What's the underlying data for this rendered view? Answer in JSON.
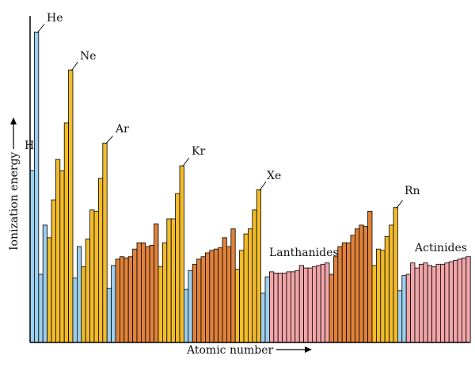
{
  "chart_data": {
    "type": "bar",
    "title": "",
    "xlabel": "Atomic number",
    "ylabel": "Ionization energy",
    "ylim": [
      0,
      25
    ],
    "x": [
      1,
      2,
      3,
      4,
      5,
      6,
      7,
      8,
      9,
      10,
      11,
      12,
      13,
      14,
      15,
      16,
      17,
      18,
      19,
      20,
      21,
      22,
      23,
      24,
      25,
      26,
      27,
      28,
      29,
      30,
      31,
      32,
      33,
      34,
      35,
      36,
      37,
      38,
      39,
      40,
      41,
      42,
      43,
      44,
      45,
      46,
      47,
      48,
      49,
      50,
      51,
      52,
      53,
      54,
      55,
      56,
      57,
      58,
      59,
      60,
      61,
      62,
      63,
      64,
      65,
      66,
      67,
      68,
      69,
      70,
      71,
      72,
      73,
      74,
      75,
      76,
      77,
      78,
      79,
      80,
      81,
      82,
      83,
      84,
      85,
      86,
      87,
      88,
      89,
      90,
      91,
      92,
      93,
      94,
      95,
      96,
      97,
      98,
      99,
      100,
      101,
      102,
      103
    ],
    "values": [
      13.6,
      24.6,
      5.4,
      9.3,
      8.3,
      11.3,
      14.5,
      13.6,
      17.4,
      21.6,
      5.1,
      7.6,
      6.0,
      8.2,
      10.5,
      10.4,
      13.0,
      15.8,
      4.3,
      6.1,
      6.6,
      6.8,
      6.7,
      6.8,
      7.4,
      7.9,
      7.9,
      7.6,
      7.7,
      9.4,
      6.0,
      7.9,
      9.8,
      9.8,
      11.8,
      14.0,
      4.2,
      5.7,
      6.2,
      6.6,
      6.8,
      7.1,
      7.3,
      7.4,
      7.5,
      8.3,
      7.6,
      9.0,
      5.8,
      7.3,
      8.6,
      9.0,
      10.5,
      12.1,
      3.9,
      5.2,
      5.6,
      5.5,
      5.5,
      5.5,
      5.6,
      5.6,
      5.7,
      6.1,
      5.9,
      5.9,
      6.0,
      6.1,
      6.2,
      6.3,
      5.4,
      6.8,
      7.6,
      7.9,
      7.9,
      8.5,
      9.0,
      9.3,
      9.2,
      10.4,
      6.1,
      7.4,
      7.3,
      8.4,
      9.3,
      10.7,
      4.1,
      5.3,
      5.4,
      6.3,
      5.9,
      6.2,
      6.3,
      6.1,
      6.0,
      6.2,
      6.2,
      6.3,
      6.4,
      6.5,
      6.6,
      6.7,
      6.8
    ],
    "groups": {
      "colors": {
        "s-block": "#9dcfee",
        "p-block": "#f2bb2a",
        "d-block": "#e0823a",
        "f-block": "#f2a5a8"
      }
    },
    "annotations": [
      "H",
      "He",
      "Ne",
      "Ar",
      "Kr",
      "Xe",
      "Rn",
      "Lanthanides",
      "Actinides"
    ]
  }
}
